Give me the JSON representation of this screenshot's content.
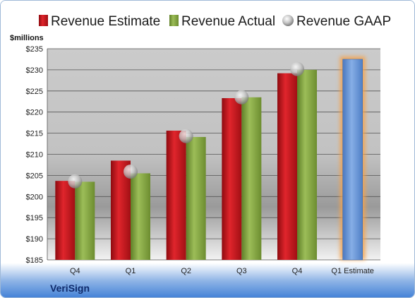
{
  "colors": {
    "estimate": "#c3141b",
    "actual": "#7e9f3c",
    "gaap": "#b8b8b8",
    "forecast": "#5f8fd2",
    "forecast_glow": "#f4a24c"
  },
  "chart_data": {
    "type": "bar",
    "unit_label": "$millions",
    "company": "VeriSign",
    "categories": [
      "Q4",
      "Q1",
      "Q2",
      "Q3",
      "Q4",
      "Q1 Estimate"
    ],
    "ylim": [
      185,
      235
    ],
    "yticks": [
      "$185",
      "$190",
      "$195",
      "$200",
      "$205",
      "$210",
      "$215",
      "$220",
      "$225",
      "$230",
      "$235"
    ],
    "ytick_values": [
      185,
      190,
      195,
      200,
      205,
      210,
      215,
      220,
      225,
      230,
      235
    ],
    "grid": true,
    "legend_position": "top",
    "series": [
      {
        "name": "Revenue Estimate",
        "kind": "bar",
        "values": [
          203.7,
          208.5,
          215.6,
          223.3,
          229.2,
          null
        ]
      },
      {
        "name": "Revenue Actual",
        "kind": "bar",
        "values": [
          203.5,
          205.5,
          214.1,
          223.5,
          230.0,
          232.5
        ]
      },
      {
        "name": "Revenue GAAP",
        "kind": "marker",
        "values": [
          203.6,
          205.9,
          214.3,
          223.5,
          230.2,
          null
        ]
      }
    ]
  }
}
